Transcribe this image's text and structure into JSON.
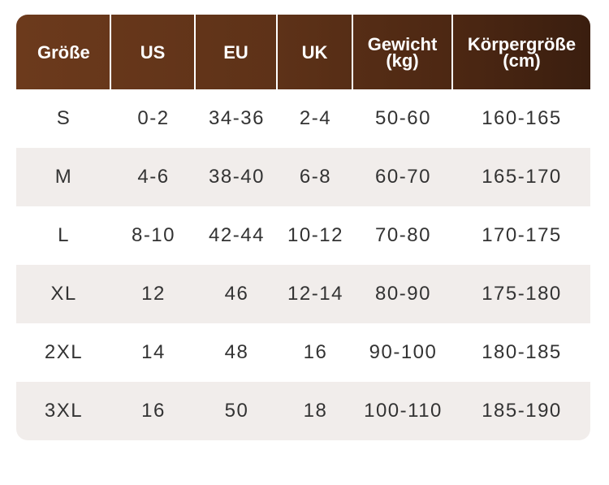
{
  "table": {
    "headers": [
      {
        "lines": [
          "Größe"
        ]
      },
      {
        "lines": [
          "US"
        ]
      },
      {
        "lines": [
          "EU"
        ]
      },
      {
        "lines": [
          "UK"
        ]
      },
      {
        "lines": [
          "Gewicht",
          "(kg)"
        ]
      },
      {
        "lines": [
          "Körpergröße",
          "(cm)"
        ]
      }
    ],
    "rows": [
      [
        "S",
        "0-2",
        "34-36",
        "2-4",
        "50-60",
        "160-165"
      ],
      [
        "M",
        "4-6",
        "38-40",
        "6-8",
        "60-70",
        "165-170"
      ],
      [
        "L",
        "8-10",
        "42-44",
        "10-12",
        "70-80",
        "170-175"
      ],
      [
        "XL",
        "12",
        "46",
        "12-14",
        "80-90",
        "175-180"
      ],
      [
        "2XL",
        "14",
        "48",
        "16",
        "90-100",
        "180-185"
      ],
      [
        "3XL",
        "16",
        "50",
        "18",
        "100-110",
        "185-190"
      ]
    ]
  },
  "colors": {
    "header_start": "#6c3a1c",
    "header_end": "#3a1e0f",
    "row_shade": "#f1edeb",
    "text": "#333333"
  }
}
